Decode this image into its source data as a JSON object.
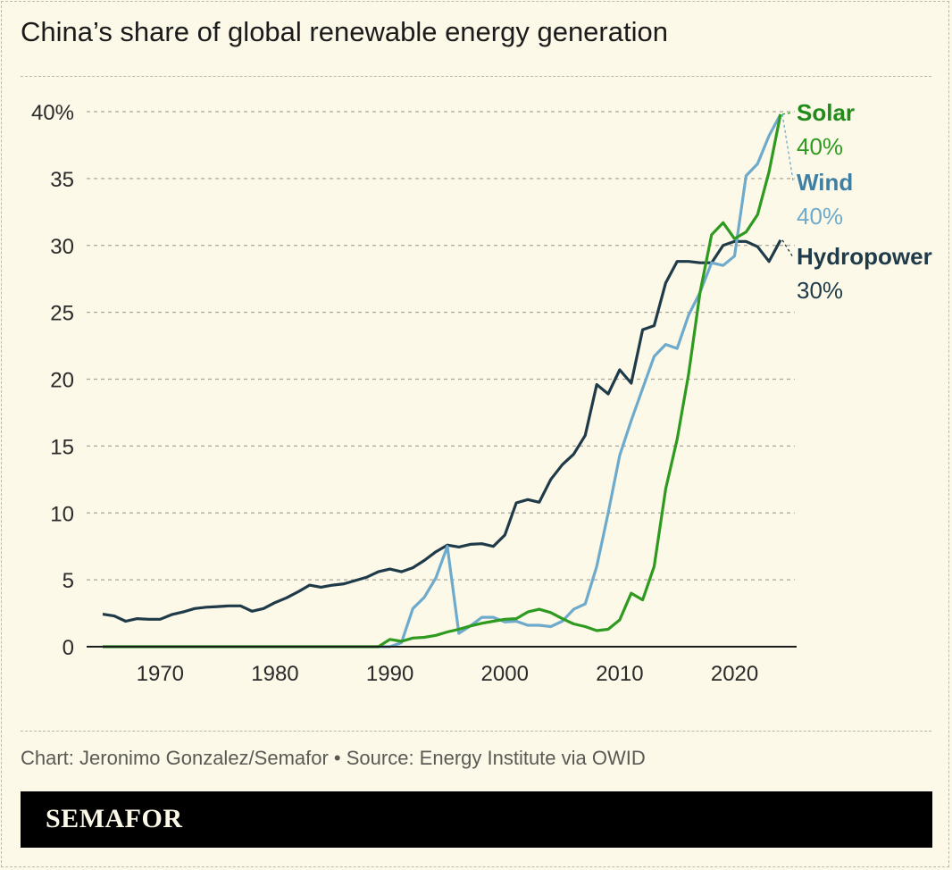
{
  "title": "China’s share of global renewable energy generation",
  "source": "Chart: Jeronimo Gonzalez/Semafor • Source: Energy Institute via OWID",
  "logo": "SEMAFOR",
  "colors": {
    "background": "#fcf9e8",
    "solar": "#2e9a1f",
    "solar_label": "#218a1a",
    "wind": "#6eaacb",
    "wind_label": "#3e7fa3",
    "hydropower": "#1f3a48"
  },
  "chart_data": {
    "type": "line",
    "title": "China’s share of global renewable energy generation",
    "xlabel": "",
    "ylabel": "",
    "xlim": [
      1965,
      2024
    ],
    "ylim": [
      0,
      40
    ],
    "x_ticks": [
      1970,
      1980,
      1990,
      2000,
      2010,
      2020
    ],
    "y_ticks": [
      {
        "v": 0,
        "label": "0"
      },
      {
        "v": 5,
        "label": "5"
      },
      {
        "v": 10,
        "label": "10"
      },
      {
        "v": 15,
        "label": "15"
      },
      {
        "v": 20,
        "label": "20"
      },
      {
        "v": 25,
        "label": "25"
      },
      {
        "v": 30,
        "label": "30"
      },
      {
        "v": 35,
        "label": "35"
      },
      {
        "v": 40,
        "label": "40%"
      }
    ],
    "grid": "horizontal dashed",
    "legend": "direct labels right",
    "start_year": 1965,
    "series": [
      {
        "name": "Hydropower",
        "end_label": "30%",
        "values": [
          2.43,
          2.3,
          1.9,
          2.1,
          2.05,
          2.05,
          2.4,
          2.6,
          2.85,
          2.95,
          3.0,
          3.05,
          3.05,
          2.65,
          2.85,
          3.3,
          3.65,
          4.1,
          4.6,
          4.45,
          4.6,
          4.7,
          4.95,
          5.2,
          5.6,
          5.8,
          5.6,
          5.9,
          6.45,
          7.1,
          7.6,
          7.45,
          7.65,
          7.7,
          7.5,
          8.35,
          10.75,
          11.0,
          10.8,
          12.5,
          13.6,
          14.4,
          15.8,
          19.6,
          18.9,
          20.7,
          19.7,
          23.7,
          24.0,
          27.2,
          28.8,
          28.8,
          28.7,
          28.7,
          30.0,
          30.3,
          30.3,
          29.9,
          28.8,
          30.4
        ]
      },
      {
        "name": "Wind",
        "end_label": "40%",
        "values": [
          0,
          0,
          0,
          0,
          0,
          0,
          0,
          0,
          0,
          0,
          0,
          0,
          0,
          0,
          0,
          0,
          0,
          0,
          0,
          0,
          0,
          0,
          0,
          0,
          0,
          0,
          0.3,
          2.85,
          3.7,
          5.15,
          7.5,
          1.0,
          1.55,
          2.2,
          2.2,
          1.85,
          1.9,
          1.6,
          1.6,
          1.5,
          1.9,
          2.8,
          3.2,
          6.0,
          10.0,
          14.3,
          16.9,
          19.3,
          21.7,
          22.6,
          22.3,
          24.8,
          26.5,
          28.7,
          28.5,
          29.2,
          35.2,
          36.1,
          38.2,
          39.8
        ]
      },
      {
        "name": "Solar",
        "end_label": "40%",
        "values": [
          0,
          0,
          0,
          0,
          0,
          0,
          0,
          0,
          0,
          0,
          0,
          0,
          0,
          0,
          0,
          0,
          0,
          0,
          0,
          0,
          0,
          0,
          0,
          0,
          0,
          0.55,
          0.4,
          0.65,
          0.7,
          0.85,
          1.1,
          1.3,
          1.55,
          1.75,
          1.9,
          2.05,
          2.1,
          2.6,
          2.8,
          2.55,
          2.1,
          1.7,
          1.5,
          1.2,
          1.3,
          2.0,
          4.0,
          3.5,
          6.0,
          11.8,
          15.5,
          20.4,
          26.5,
          30.8,
          31.7,
          30.5,
          31.0,
          32.3,
          35.5,
          39.8
        ]
      }
    ]
  }
}
